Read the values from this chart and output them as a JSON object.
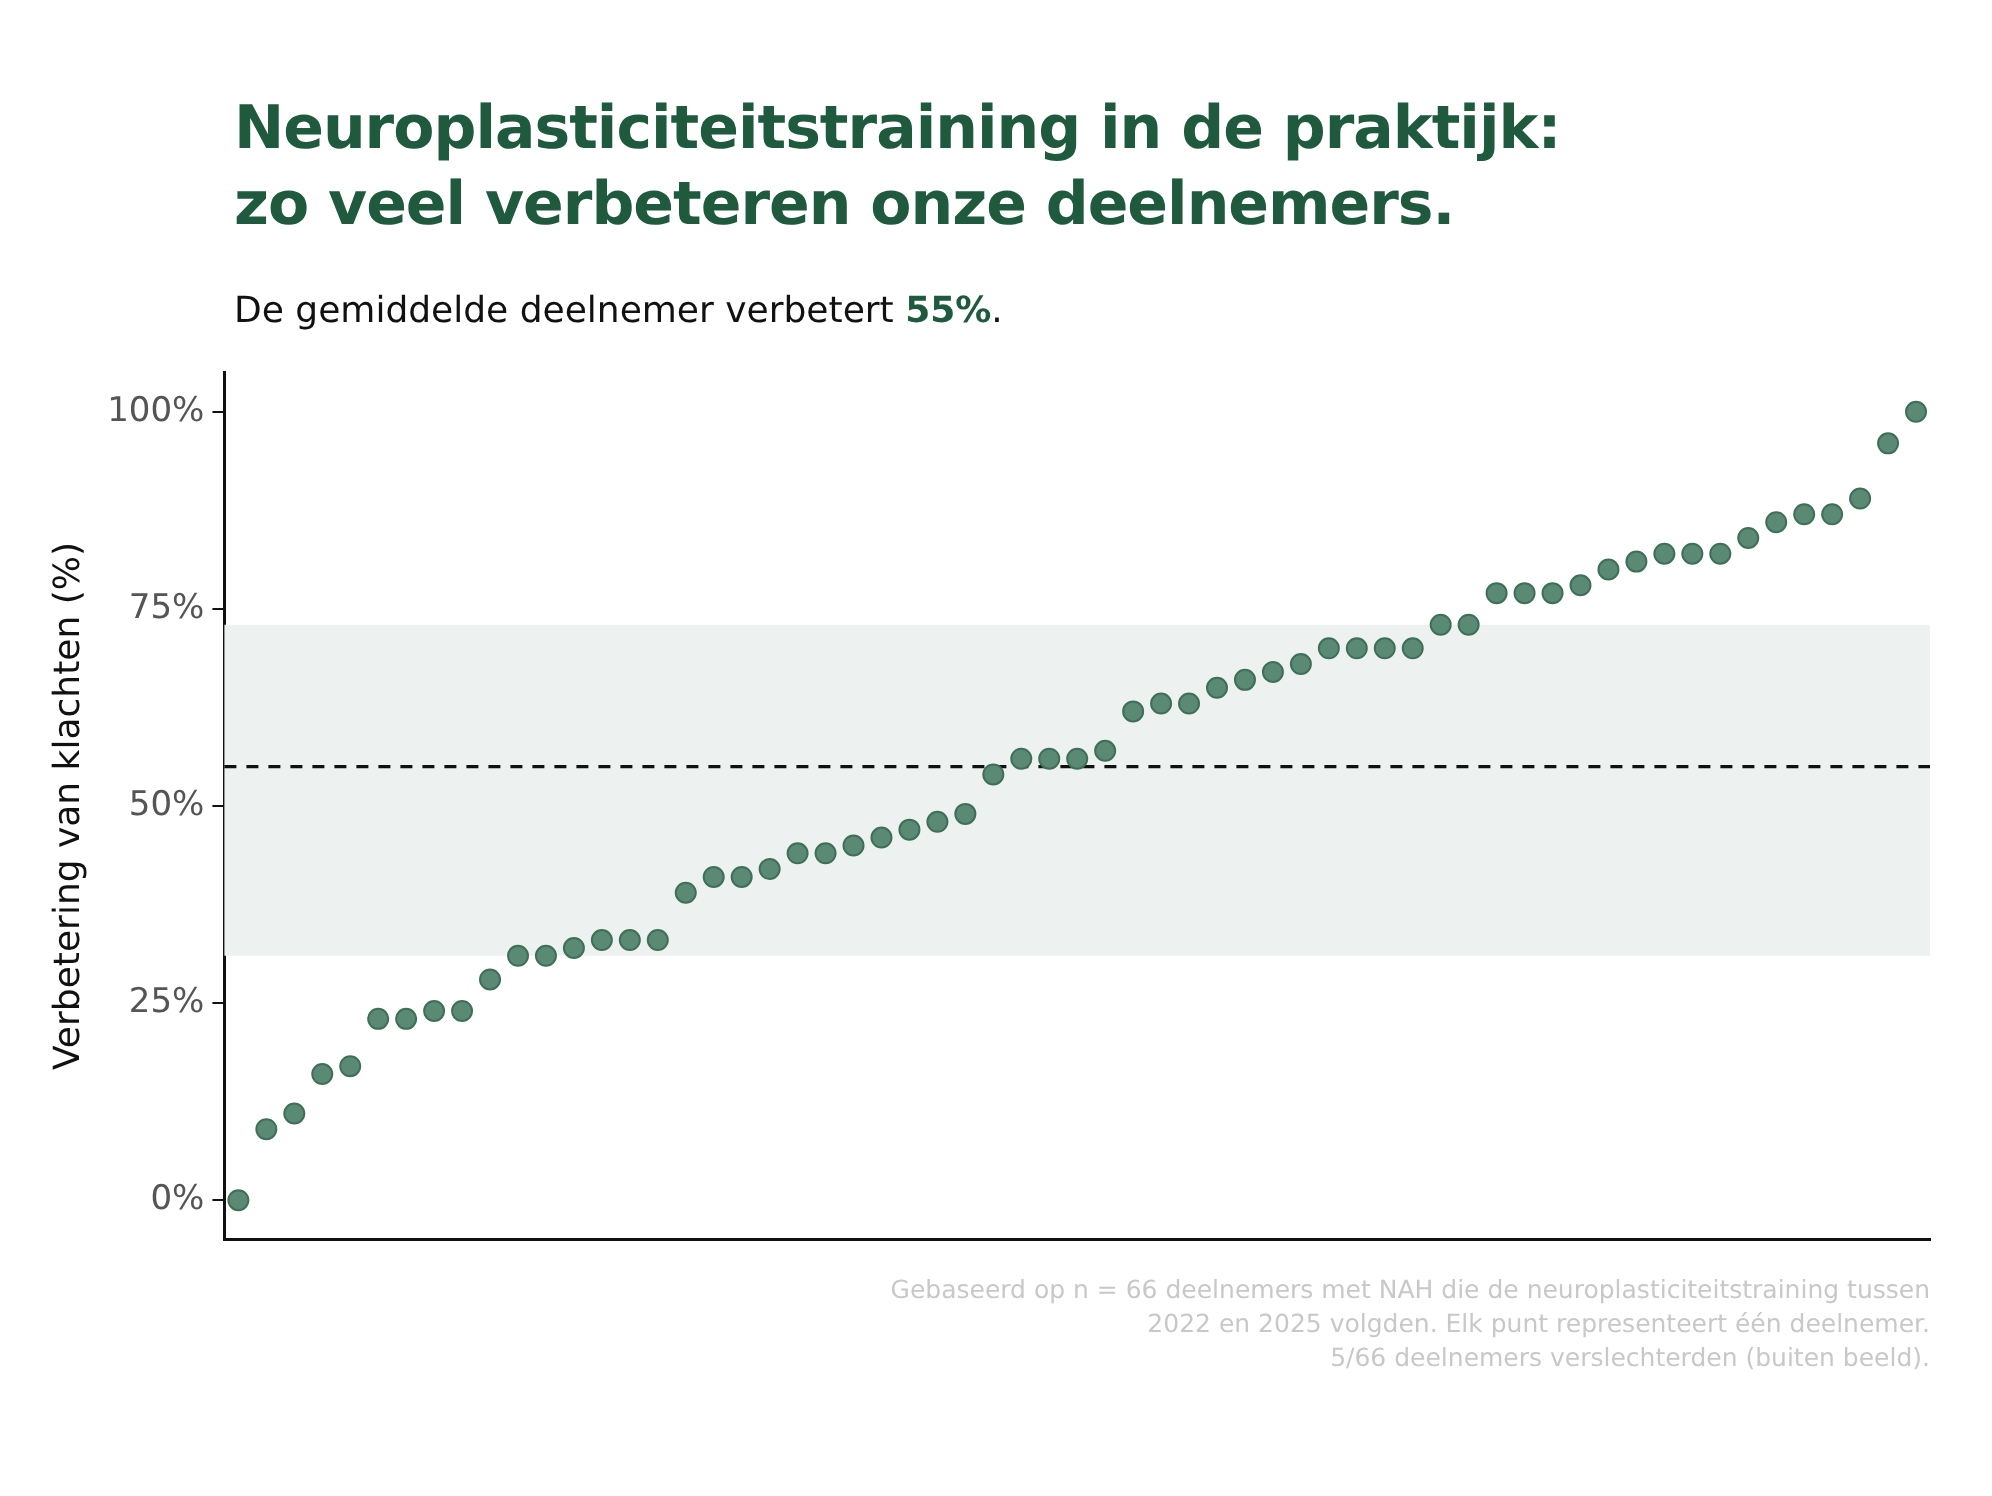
{
  "chart_data": {
    "type": "scatter",
    "title": "Neuroplasticiteitstraining in de praktijk:\nzo veel verbeteren onze deelnemers.",
    "subtitle": "De gemiddelde deelnemer verbetert 55%.",
    "ylabel": "Verbetering van klachten (%)",
    "categories": [
      null,
      null,
      null,
      null,
      null,
      null,
      null,
      null,
      null,
      null,
      null,
      null,
      null,
      null,
      null,
      null,
      null,
      null,
      null,
      null,
      null,
      null,
      null,
      null,
      null,
      null,
      null,
      null,
      null,
      null,
      null,
      null,
      null,
      null,
      null,
      null,
      null,
      null,
      null,
      null,
      null,
      null,
      null,
      null,
      null,
      null,
      null,
      null,
      null,
      null,
      null,
      null,
      null,
      null,
      null,
      null,
      null,
      null,
      null,
      null,
      null
    ],
    "series": [
      {
        "color": "#5a8a73",
        "values": [
          0,
          9,
          11,
          16,
          17,
          23,
          23,
          24,
          24,
          28,
          31,
          31,
          32,
          33,
          33,
          33,
          39,
          41,
          41,
          42,
          44,
          44,
          45,
          46,
          47,
          48,
          49,
          54,
          56,
          56,
          56,
          57,
          62,
          63,
          63,
          65,
          66,
          67,
          68,
          70,
          70,
          70,
          70,
          73,
          73,
          77,
          77,
          77,
          78,
          80,
          81,
          82,
          82,
          82,
          84,
          86,
          87,
          87,
          89,
          96,
          100
        ]
      }
    ],
    "ylim": [
      -5,
      105
    ],
    "yticks": [
      {
        "value": 0,
        "label": "0%"
      },
      {
        "value": 25,
        "label": "25%"
      },
      {
        "value": 50,
        "label": "50%"
      },
      {
        "value": 75,
        "label": "75%"
      },
      {
        "value": 100,
        "label": "100%"
      }
    ],
    "ref_lines": [
      {
        "axis": "y",
        "value": 55,
        "color": "#111111",
        "line_style": "dashed"
      }
    ],
    "bands": [
      {
        "axis": "y",
        "from": 31,
        "to": 73,
        "color": "#edf1ef"
      }
    ],
    "annotations": [
      "Gebaseerd op n = 66 deelnemers met NAH die de neuroplasticiteitstraining tussen\n2022 en 2025 volgden. Elk punt representeert één deelnemer.\n5/66 deelnemers verslechterden (buiten beeld)."
    ],
    "grid": false,
    "legend": false,
    "marker": "circle",
    "tick_labels": "y"
  }
}
